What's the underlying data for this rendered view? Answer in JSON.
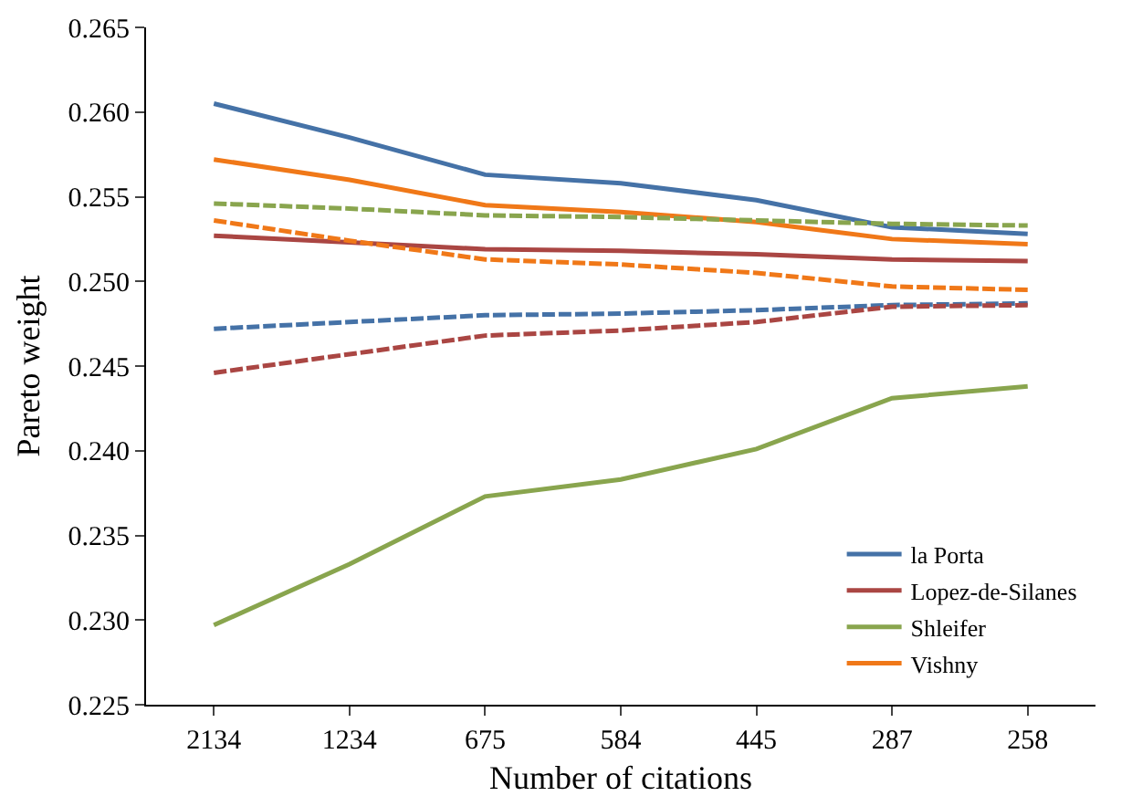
{
  "chart_data": {
    "type": "line",
    "xlabel": "Number of citations",
    "ylabel": "Pareto weight",
    "categories": [
      "2134",
      "1234",
      "675",
      "584",
      "445",
      "287",
      "258"
    ],
    "series": [
      {
        "name": "la Porta",
        "color": "#4572a7",
        "line_style": "solid",
        "values": [
          0.2605,
          0.2585,
          0.2563,
          0.2558,
          0.2548,
          0.2532,
          0.2528
        ]
      },
      {
        "name": "Lopez-de-Silanes",
        "color": "#aa4643",
        "line_style": "solid",
        "values": [
          0.2527,
          0.2523,
          0.2519,
          0.2518,
          0.2516,
          0.2513,
          0.2512
        ]
      },
      {
        "name": "Shleifer",
        "color": "#89a54e",
        "line_style": "solid",
        "values": [
          0.2297,
          0.2333,
          0.2373,
          0.2383,
          0.2401,
          0.2431,
          0.2438
        ]
      },
      {
        "name": "Vishny",
        "color": "#f07818",
        "line_style": "solid",
        "values": [
          0.2572,
          0.256,
          0.2545,
          0.2541,
          0.2535,
          0.2525,
          0.2522
        ]
      },
      {
        "color": "#4572a7",
        "line_style": "dashed",
        "values": [
          0.2472,
          0.2476,
          0.248,
          0.2481,
          0.2483,
          0.2486,
          0.2487
        ]
      },
      {
        "color": "#aa4643",
        "line_style": "dashed",
        "values": [
          0.2446,
          0.2457,
          0.2468,
          0.2471,
          0.2476,
          0.2485,
          0.2486
        ]
      },
      {
        "color": "#89a54e",
        "line_style": "dashed",
        "values": [
          0.2546,
          0.2543,
          0.2539,
          0.2538,
          0.2536,
          0.2534,
          0.2533
        ]
      },
      {
        "color": "#f07818",
        "line_style": "dashed",
        "values": [
          0.2536,
          0.2524,
          0.2513,
          0.251,
          0.2505,
          0.2497,
          0.2495
        ]
      }
    ],
    "ylim": [
      0.225,
      0.265
    ],
    "yticks": [
      0.225,
      {
        "value": 0.23,
        "label": "0.230"
      },
      0.235,
      {
        "value": 0.24,
        "label": "0.240"
      },
      0.245,
      {
        "value": 0.25,
        "label": "0.250"
      },
      0.255,
      {
        "value": 0.26,
        "label": "0.260"
      },
      0.265
    ],
    "grid": false,
    "legend": "bottom right",
    "marker": "none"
  }
}
